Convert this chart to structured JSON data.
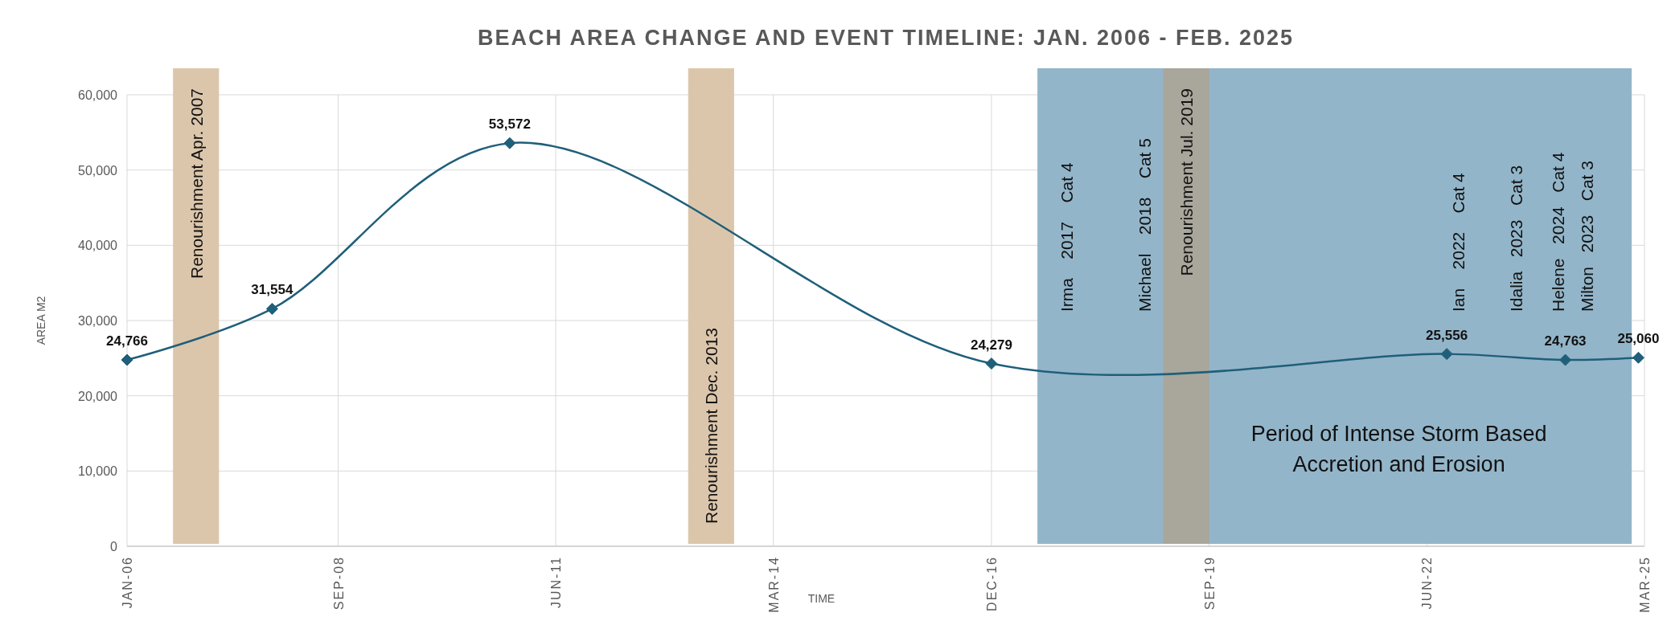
{
  "chart_data": {
    "type": "line",
    "title": "BEACH AREA CHANGE AND EVENT TIMELINE: JAN. 2006 - FEB. 2025",
    "xlabel": "TIME",
    "ylabel": "AREA M2",
    "x": [
      "2006-01",
      "2007-11",
      "2010-11",
      "2016-12",
      "2022-09",
      "2024-03",
      "2025-02"
    ],
    "series": [
      {
        "color": "#1f5f7a",
        "values": [
          24766,
          31554,
          53572,
          24279,
          25556,
          24763,
          25060
        ]
      }
    ],
    "value_labels": [
      "24,766",
      "31,554",
      "53,572",
      "24,279",
      "25,556",
      "24,763",
      "25,060"
    ],
    "marker": "diamond",
    "line_style": "solid",
    "grid": true,
    "xlim": [
      "2006-01",
      "2025-03"
    ],
    "xticks": [
      {
        "value": "2006-01",
        "label": "JAN-06"
      },
      {
        "value": "2008-09",
        "label": "SEP-08"
      },
      {
        "value": "2011-06",
        "label": "JUN-11"
      },
      {
        "value": "2014-03",
        "label": "MAR-14"
      },
      {
        "value": "2016-12",
        "label": "DEC-16"
      },
      {
        "value": "2019-09",
        "label": "SEP-19"
      },
      {
        "value": "2022-06",
        "label": "JUN-22"
      },
      {
        "value": "2025-03",
        "label": "MAR-25"
      }
    ],
    "ylim": [
      0,
      60000
    ],
    "yticks": [
      {
        "value": 0,
        "label": "0"
      },
      {
        "value": 10000,
        "label": "10,000"
      },
      {
        "value": 20000,
        "label": "20,000"
      },
      {
        "value": 30000,
        "label": "30,000"
      },
      {
        "value": 40000,
        "label": "40,000"
      },
      {
        "value": 50000,
        "label": "50,000"
      },
      {
        "value": 60000,
        "label": "60,000"
      }
    ],
    "bands": [
      {
        "axis": "x",
        "from": "2006-08",
        "to": "2007-03",
        "label": "Renourishment Apr. 2007",
        "color": "#dcc6ab"
      },
      {
        "axis": "x",
        "from": "2013-02",
        "to": "2013-09",
        "label": "Renourishment Dec. 2013",
        "color": "#dcc6ab"
      },
      {
        "axis": "x",
        "from": "2017-07",
        "to": "2025-01",
        "label": "Period of Intense Storm Based Accretion and Erosion",
        "color": "#93b5c9"
      },
      {
        "axis": "x",
        "from": "2019-02",
        "to": "2019-09",
        "label": "Renourishment Jul. 2019",
        "color": "#a9a69c"
      }
    ],
    "annotations": [
      "Irma    2017    Cat 4",
      "Michael    2018    Cat 5",
      "Ian    2022    Cat 4",
      "Idalia   2023   Cat 3",
      "Helene   2024   Cat 4",
      "Milton   2023   Cat 3"
    ]
  }
}
